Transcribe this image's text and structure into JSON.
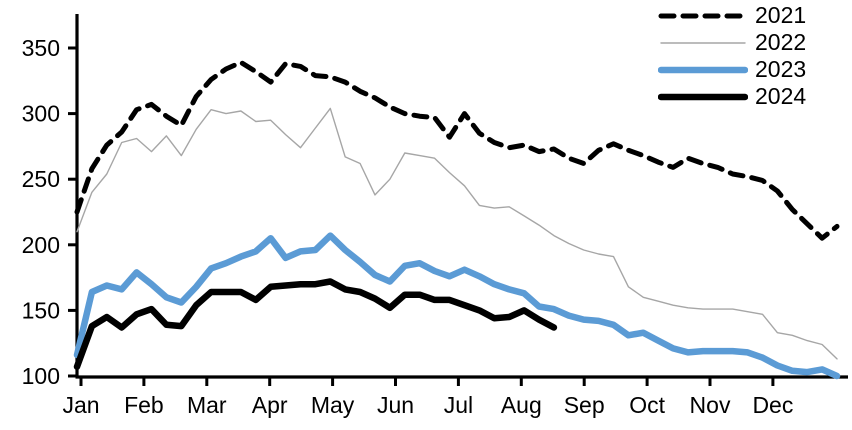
{
  "chart_data": {
    "type": "line",
    "title": "",
    "xlabel": "",
    "ylabel": "",
    "x_unit": "weekly (52 points per year)",
    "months": [
      "Jan",
      "Feb",
      "Mar",
      "Apr",
      "May",
      "Jun",
      "Jul",
      "Aug",
      "Sep",
      "Oct",
      "Nov",
      "Dec"
    ],
    "y_ticks": [
      100,
      150,
      200,
      250,
      300,
      350
    ],
    "ylim": [
      100,
      375
    ],
    "grid": false,
    "legend_position": "top-right",
    "axis_color": "#000000",
    "series": [
      {
        "name": "2021",
        "color": "#000000",
        "style": "dashed",
        "width": 5,
        "values": [
          225,
          258,
          276,
          286,
          303,
          307,
          298,
          291,
          313,
          326,
          334,
          339,
          332,
          324,
          338,
          336,
          329,
          328,
          324,
          317,
          312,
          305,
          300,
          298,
          297,
          282,
          300,
          285,
          278,
          274,
          276,
          271,
          273,
          266,
          262,
          272,
          277,
          272,
          268,
          263,
          259,
          266,
          262,
          259,
          254,
          252,
          249,
          241,
          227,
          216,
          205,
          214
        ]
      },
      {
        "name": "2022",
        "color": "#a6a6a6",
        "style": "solid",
        "width": 1.4,
        "values": [
          210,
          240,
          254,
          278,
          281,
          271,
          283,
          268,
          288,
          303,
          300,
          302,
          294,
          295,
          284,
          274,
          289,
          304,
          267,
          262,
          238,
          250,
          270,
          268,
          266,
          255,
          245,
          230,
          228,
          229,
          222,
          215,
          207,
          201,
          196,
          193,
          191,
          168,
          160,
          157,
          154,
          152,
          151,
          151,
          151,
          149,
          147,
          133,
          131,
          127,
          124,
          113
        ]
      },
      {
        "name": "2023",
        "color": "#5b9bd5",
        "style": "solid",
        "width": 6.5,
        "values": [
          116,
          164,
          169,
          166,
          179,
          170,
          160,
          156,
          168,
          182,
          186,
          191,
          195,
          205,
          190,
          195,
          196,
          207,
          196,
          187,
          177,
          172,
          184,
          186,
          180,
          176,
          181,
          176,
          170,
          166,
          163,
          153,
          151,
          146,
          143,
          142,
          139,
          131,
          133,
          127,
          121,
          118,
          119,
          119,
          119,
          118,
          114,
          108,
          104,
          103,
          105,
          100
        ]
      },
      {
        "name": "2024",
        "color": "#000000",
        "style": "solid",
        "width": 6.5,
        "values": [
          107,
          138,
          145,
          137,
          147,
          151,
          139,
          138,
          154,
          164,
          164,
          164,
          158,
          168,
          169,
          170,
          170,
          172,
          166,
          164,
          159,
          152,
          162,
          162,
          158,
          158,
          154,
          150,
          144,
          145,
          150,
          143,
          137
        ]
      }
    ]
  }
}
